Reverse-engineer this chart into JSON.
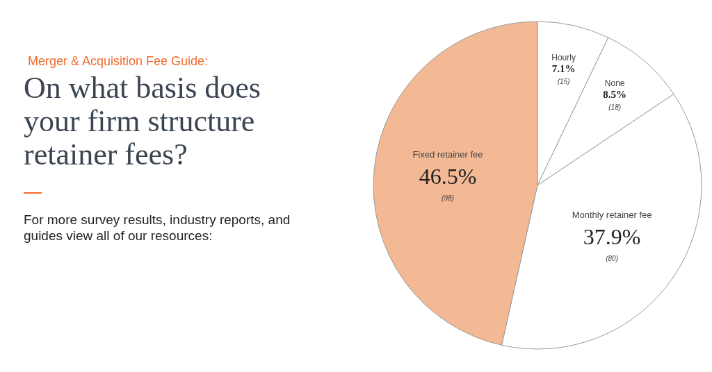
{
  "chart_data": {
    "type": "pie",
    "subtitle": "Merger & Acquisition Fee Guide:",
    "title": "On what basis does your firm structure retainer fees?",
    "categories": [
      "Hourly",
      "None",
      "Monthly retainer fee",
      "Fixed retainer fee"
    ],
    "values": [
      7.1,
      8.5,
      37.9,
      46.5
    ],
    "colors": [
      "#ffffff",
      "#ffffff",
      "#ffffff",
      "#f2b994"
    ],
    "value_labels": [
      "7.1%",
      "8.5%",
      "37.9%",
      "46.5%"
    ],
    "annotations": [
      {
        "text": "(15)",
        "x": "Hourly"
      },
      {
        "text": "(18)",
        "x": "None"
      },
      {
        "text": "(80)",
        "x": "Monthly retainer fee"
      },
      {
        "text": "(98)",
        "x": "Fixed retainer fee"
      },
      "For more survey results, industry reports, and guides view all of our resources:"
    ],
    "legend": false
  }
}
